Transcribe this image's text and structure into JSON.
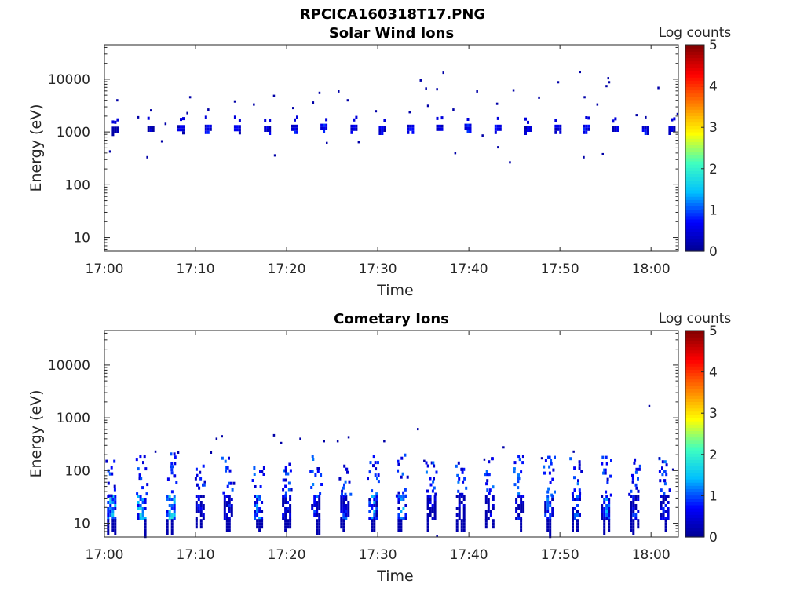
{
  "figure_title": "RPCICA160318T17.PNG",
  "chart_data": [
    {
      "type": "heatmap",
      "title": "Solar Wind Ions",
      "xlabel": "Time",
      "ylabel": "Energy (eV)",
      "colorbar_label": "Log counts",
      "x_ticks": [
        "17:00",
        "17:10",
        "17:20",
        "17:30",
        "17:40",
        "17:50",
        "18:00"
      ],
      "x_range_minutes": [
        0,
        63
      ],
      "y_scale": "log",
      "y_ticks": [
        "10",
        "100",
        "1000",
        "10000"
      ],
      "y_range": [
        5.5,
        45000
      ],
      "colorbar_range": [
        0,
        5
      ],
      "colorbar_ticks": [
        "0",
        "1",
        "2",
        "3",
        "4",
        "5"
      ],
      "colormap": [
        "#00008f",
        "#0000ff",
        "#00bfff",
        "#3fffbf",
        "#ffff00",
        "#ff8000",
        "#ff0000",
        "#800000"
      ],
      "bursts": [
        {
          "t": 1.2,
          "e": 1100,
          "v": 0.6
        },
        {
          "t": 5.1,
          "e": 1150,
          "v": 0.7
        },
        {
          "t": 8.4,
          "e": 1180,
          "v": 0.9
        },
        {
          "t": 11.4,
          "e": 1200,
          "v": 1.0
        },
        {
          "t": 14.6,
          "e": 1180,
          "v": 0.9
        },
        {
          "t": 17.9,
          "e": 1150,
          "v": 0.9
        },
        {
          "t": 20.9,
          "e": 1200,
          "v": 1.0
        },
        {
          "t": 24.1,
          "e": 1250,
          "v": 1.1
        },
        {
          "t": 27.4,
          "e": 1200,
          "v": 1.0
        },
        {
          "t": 30.5,
          "e": 1150,
          "v": 0.9
        },
        {
          "t": 33.6,
          "e": 1200,
          "v": 1.0
        },
        {
          "t": 36.8,
          "e": 1200,
          "v": 1.0
        },
        {
          "t": 39.9,
          "e": 1250,
          "v": 1.1
        },
        {
          "t": 43.2,
          "e": 1200,
          "v": 1.0
        },
        {
          "t": 46.5,
          "e": 1150,
          "v": 0.9
        },
        {
          "t": 49.8,
          "e": 1200,
          "v": 1.0
        },
        {
          "t": 52.9,
          "e": 1200,
          "v": 1.1
        },
        {
          "t": 56.1,
          "e": 1150,
          "v": 0.9
        },
        {
          "t": 59.4,
          "e": 1150,
          "v": 0.9
        },
        {
          "t": 62.3,
          "e": 1150,
          "v": 0.9
        }
      ],
      "scatter": [
        {
          "t": 1.3,
          "e": 4200
        },
        {
          "t": 0.5,
          "e": 450
        },
        {
          "t": 3.6,
          "e": 2000
        },
        {
          "t": 4.6,
          "e": 350
        },
        {
          "t": 5.0,
          "e": 2700
        },
        {
          "t": 6.2,
          "e": 700
        },
        {
          "t": 6.6,
          "e": 1500
        },
        {
          "t": 9.3,
          "e": 4800
        },
        {
          "t": 9.0,
          "e": 2400
        },
        {
          "t": 11.3,
          "e": 2800
        },
        {
          "t": 14.2,
          "e": 4000
        },
        {
          "t": 16.3,
          "e": 3500
        },
        {
          "t": 18.5,
          "e": 5100
        },
        {
          "t": 18.6,
          "e": 380
        },
        {
          "t": 20.6,
          "e": 3000
        },
        {
          "t": 22.8,
          "e": 3800
        },
        {
          "t": 23.5,
          "e": 5800
        },
        {
          "t": 24.3,
          "e": 650
        },
        {
          "t": 25.6,
          "e": 6200
        },
        {
          "t": 26.6,
          "e": 4200
        },
        {
          "t": 27.8,
          "e": 680
        },
        {
          "t": 29.7,
          "e": 2600
        },
        {
          "t": 33.4,
          "e": 2500
        },
        {
          "t": 34.6,
          "e": 10000
        },
        {
          "t": 35.2,
          "e": 7000
        },
        {
          "t": 35.4,
          "e": 3300
        },
        {
          "t": 36.4,
          "e": 6800
        },
        {
          "t": 37.1,
          "e": 14000
        },
        {
          "t": 38.2,
          "e": 2800
        },
        {
          "t": 38.4,
          "e": 420
        },
        {
          "t": 40.8,
          "e": 6200
        },
        {
          "t": 41.4,
          "e": 900
        },
        {
          "t": 43.0,
          "e": 3600
        },
        {
          "t": 43.1,
          "e": 540
        },
        {
          "t": 44.4,
          "e": 280
        },
        {
          "t": 44.8,
          "e": 6500
        },
        {
          "t": 47.6,
          "e": 4700
        },
        {
          "t": 49.7,
          "e": 9200
        },
        {
          "t": 52.1,
          "e": 14500
        },
        {
          "t": 52.6,
          "e": 4800
        },
        {
          "t": 52.5,
          "e": 350
        },
        {
          "t": 54.0,
          "e": 3500
        },
        {
          "t": 54.6,
          "e": 400
        },
        {
          "t": 55.0,
          "e": 7800
        },
        {
          "t": 55.2,
          "e": 11000
        },
        {
          "t": 55.3,
          "e": 9200
        },
        {
          "t": 58.3,
          "e": 2200
        },
        {
          "t": 59.3,
          "e": 2000
        },
        {
          "t": 60.7,
          "e": 7200
        },
        {
          "t": 62.8,
          "e": 2300
        }
      ]
    },
    {
      "type": "heatmap",
      "title": "Cometary Ions",
      "xlabel": "Time",
      "ylabel": "Energy (eV)",
      "colorbar_label": "Log counts",
      "x_ticks": [
        "17:00",
        "17:10",
        "17:20",
        "17:30",
        "17:40",
        "17:50",
        "18:00"
      ],
      "x_range_minutes": [
        0,
        63
      ],
      "y_scale": "log",
      "y_ticks": [
        "10",
        "100",
        "1000",
        "10000"
      ],
      "y_range": [
        5.5,
        45000
      ],
      "colorbar_range": [
        0,
        5
      ],
      "colorbar_ticks": [
        "0",
        "1",
        "2",
        "3",
        "4",
        "5"
      ],
      "colormap": [
        "#00008f",
        "#0000ff",
        "#00bfff",
        "#3fffbf",
        "#ffff00",
        "#ff8000",
        "#ff0000",
        "#800000"
      ],
      "bursts": [
        {
          "t": 0.8,
          "e": 20,
          "v": 1.9,
          "hi": 160
        },
        {
          "t": 4.1,
          "e": 20,
          "v": 2.0,
          "hi": 200
        },
        {
          "t": 7.3,
          "e": 20,
          "v": 2.1,
          "hi": 220
        },
        {
          "t": 10.5,
          "e": 18,
          "v": 1.0,
          "hi": 130
        },
        {
          "t": 13.6,
          "e": 18,
          "v": 1.1,
          "hi": 210
        },
        {
          "t": 16.9,
          "e": 20,
          "v": 1.6,
          "hi": 120
        },
        {
          "t": 20.0,
          "e": 20,
          "v": 1.2,
          "hi": 140
        },
        {
          "t": 23.2,
          "e": 20,
          "v": 1.3,
          "hi": 230
        },
        {
          "t": 26.4,
          "e": 20,
          "v": 1.4,
          "hi": 130
        },
        {
          "t": 29.5,
          "e": 20,
          "v": 1.6,
          "hi": 200
        },
        {
          "t": 32.7,
          "e": 22,
          "v": 1.8,
          "hi": 210
        },
        {
          "t": 35.9,
          "e": 20,
          "v": 1.0,
          "hi": 150
        },
        {
          "t": 39.1,
          "e": 20,
          "v": 0.9,
          "hi": 170
        },
        {
          "t": 42.3,
          "e": 22,
          "v": 1.0,
          "hi": 180
        },
        {
          "t": 45.6,
          "e": 20,
          "v": 1.1,
          "hi": 200
        },
        {
          "t": 48.8,
          "e": 20,
          "v": 1.5,
          "hi": 190
        },
        {
          "t": 51.8,
          "e": 20,
          "v": 1.3,
          "hi": 180
        },
        {
          "t": 55.0,
          "e": 20,
          "v": 1.6,
          "hi": 190
        },
        {
          "t": 58.2,
          "e": 20,
          "v": 1.1,
          "hi": 170
        },
        {
          "t": 61.5,
          "e": 20,
          "v": 1.1,
          "hi": 180
        }
      ],
      "scatter": [
        {
          "t": 5.5,
          "e": 240
        },
        {
          "t": 8.0,
          "e": 230
        },
        {
          "t": 11.6,
          "e": 230
        },
        {
          "t": 12.2,
          "e": 420
        },
        {
          "t": 12.8,
          "e": 470
        },
        {
          "t": 18.5,
          "e": 490
        },
        {
          "t": 19.3,
          "e": 350
        },
        {
          "t": 21.4,
          "e": 420
        },
        {
          "t": 24.0,
          "e": 380
        },
        {
          "t": 25.5,
          "e": 380
        },
        {
          "t": 26.7,
          "e": 450
        },
        {
          "t": 30.6,
          "e": 380
        },
        {
          "t": 34.3,
          "e": 640
        },
        {
          "t": 35.0,
          "e": 160
        },
        {
          "t": 36.4,
          "e": 6
        },
        {
          "t": 41.6,
          "e": 170
        },
        {
          "t": 43.7,
          "e": 290
        },
        {
          "t": 47.9,
          "e": 180
        },
        {
          "t": 51.4,
          "e": 240
        },
        {
          "t": 59.7,
          "e": 1750
        },
        {
          "t": 60.8,
          "e": 180
        },
        {
          "t": 62.3,
          "e": 110
        }
      ]
    }
  ]
}
